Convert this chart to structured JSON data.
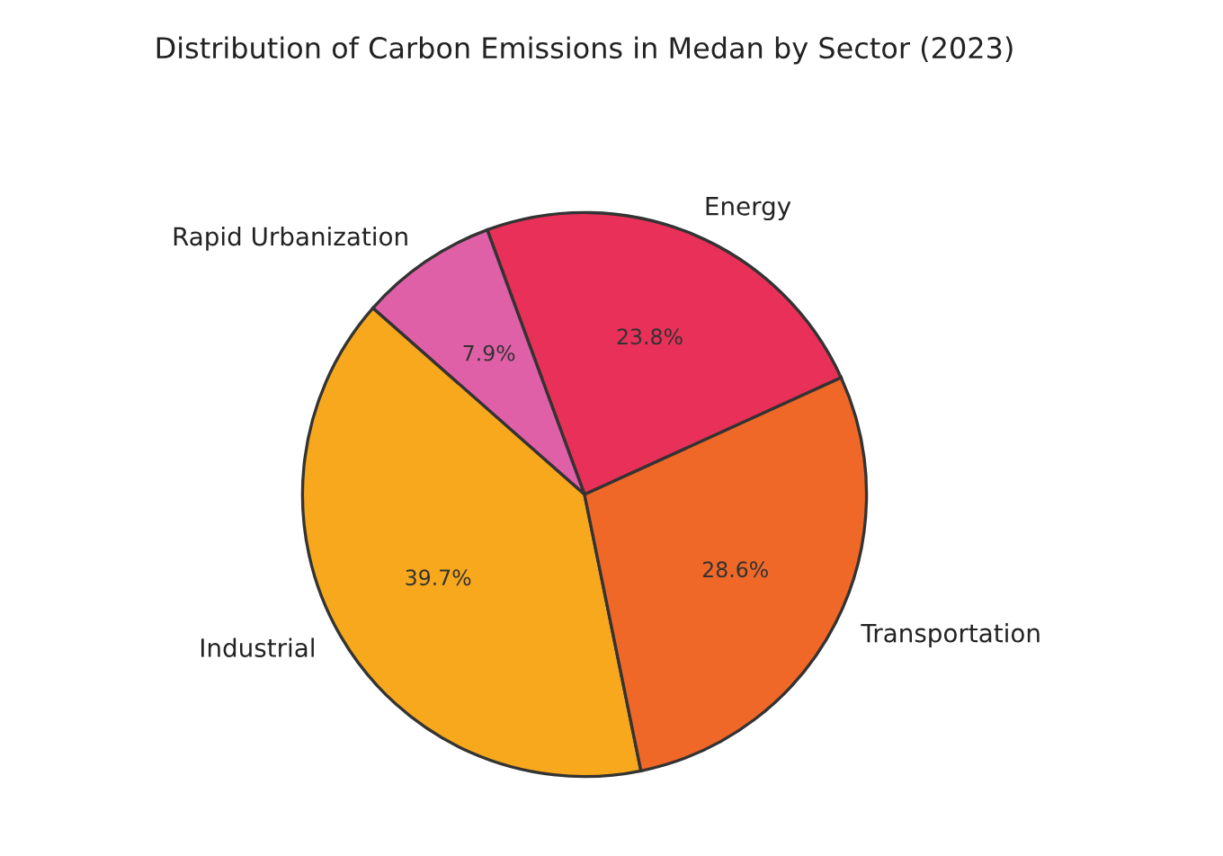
{
  "chart_data": {
    "type": "pie",
    "title": "Distribution of Carbon Emissions in Medan by Sector (2023)",
    "categories": [
      "Energy",
      "Rapid Urbanization",
      "Industrial",
      "Transportation"
    ],
    "values": [
      23.8,
      7.9,
      39.7,
      28.6
    ],
    "value_labels": [
      "23.8%",
      "7.9%",
      "39.7%",
      "28.6%"
    ],
    "colors": [
      "#e83058",
      "#e060a8",
      "#f8a81c",
      "#f06828"
    ]
  }
}
